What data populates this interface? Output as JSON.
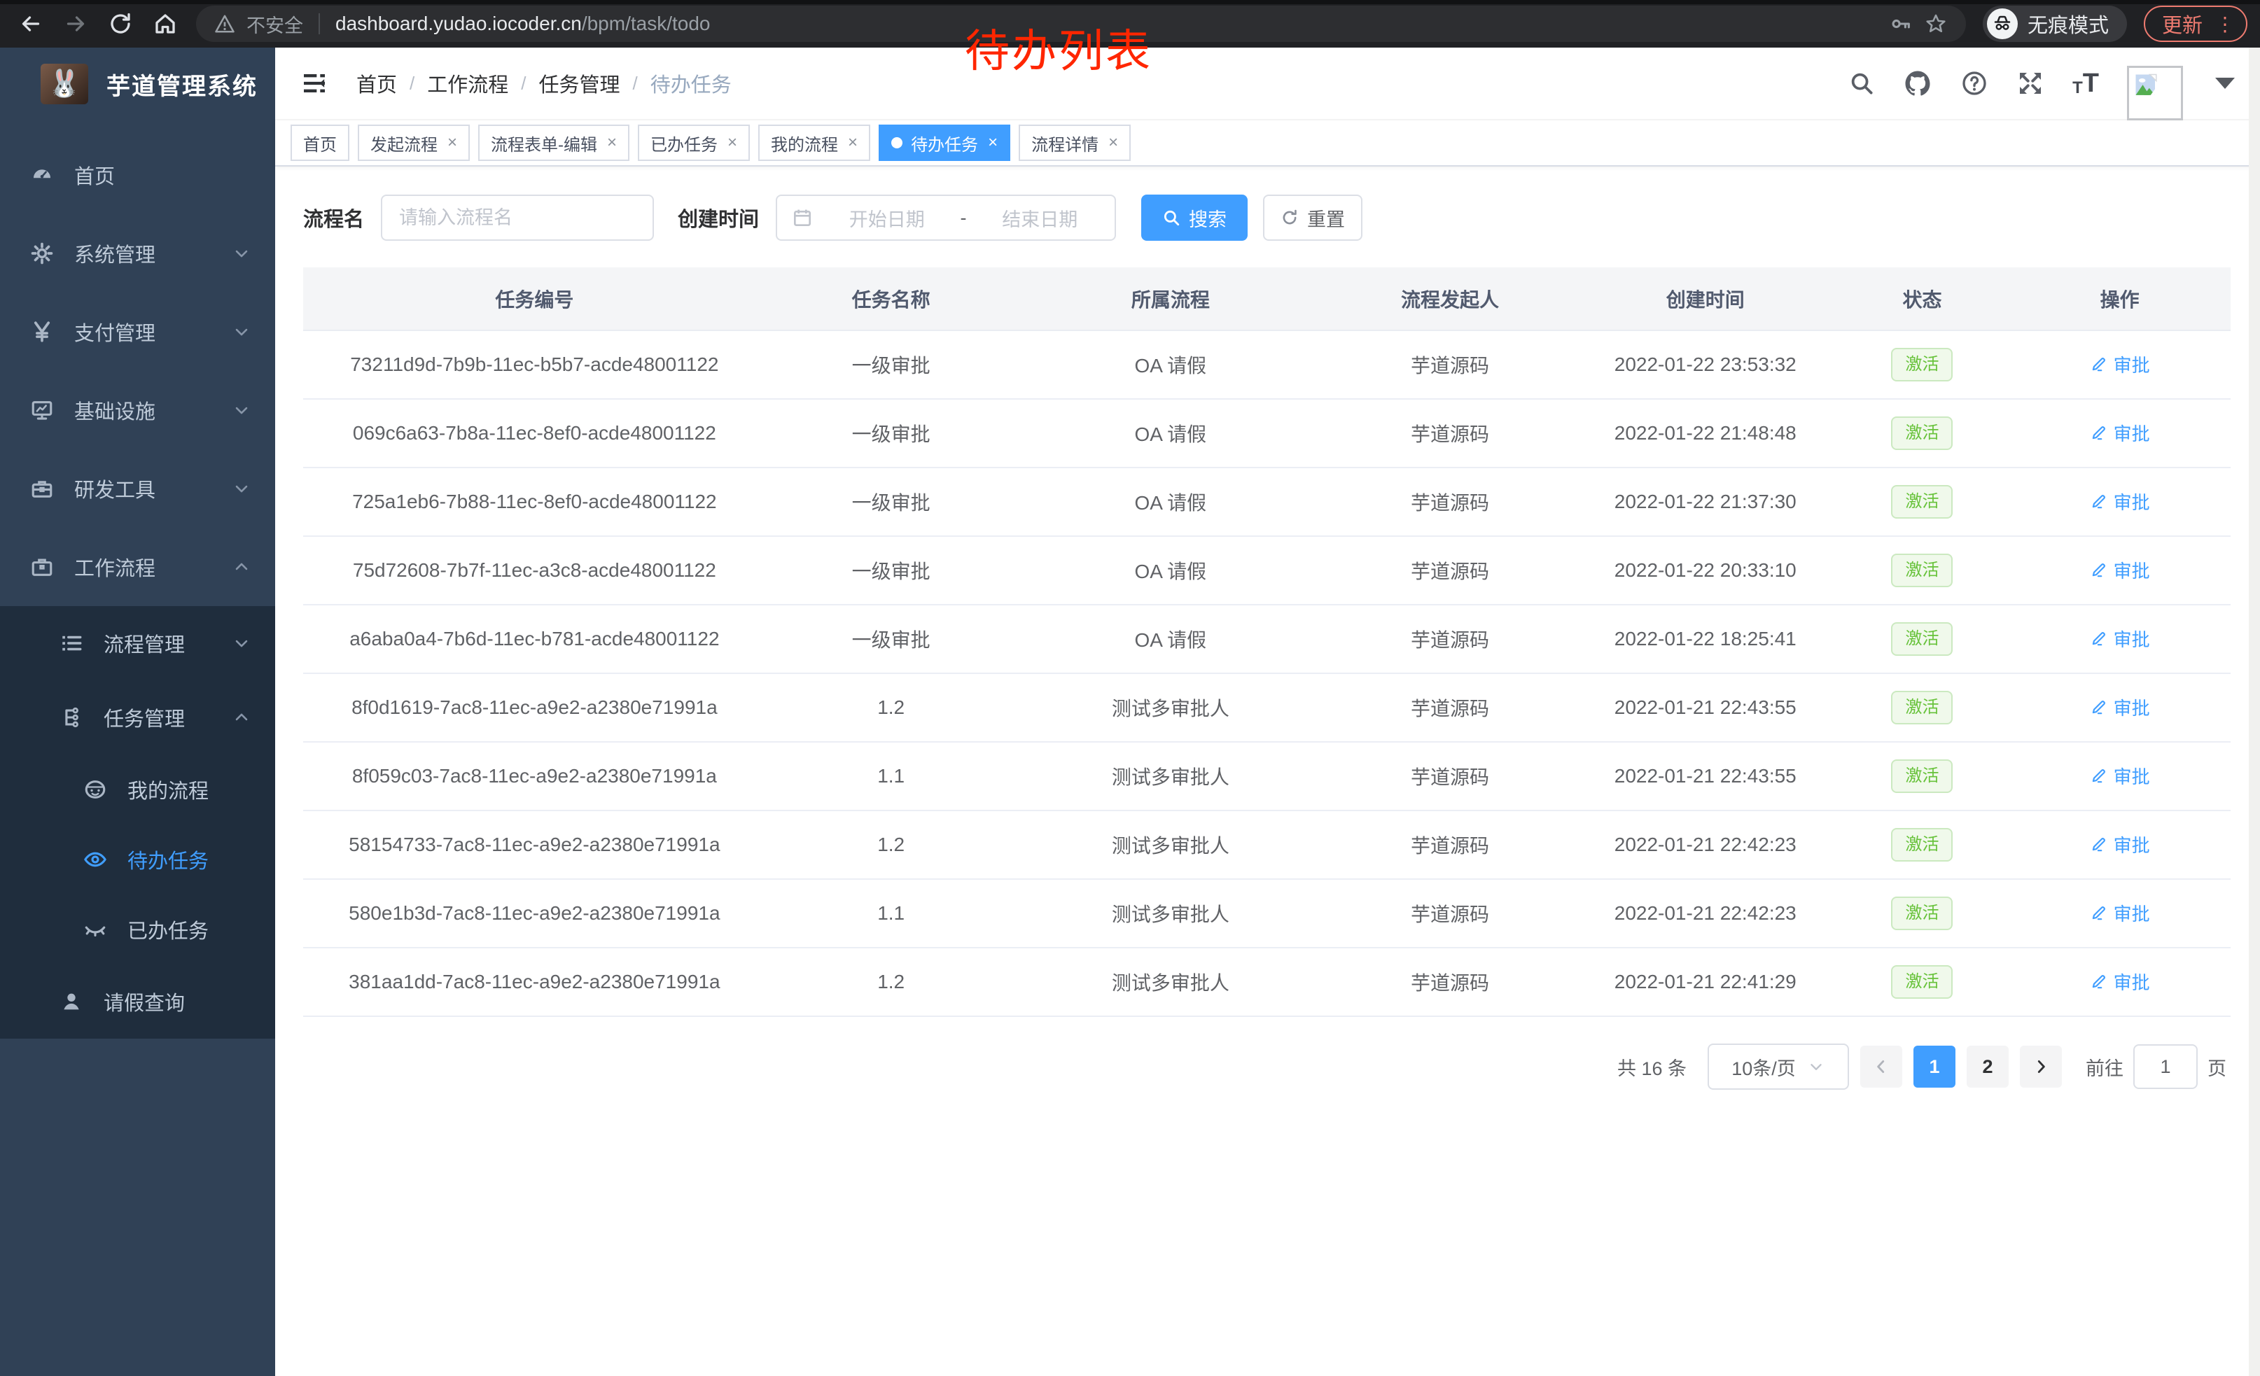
{
  "colors": {
    "accent": "#409eff",
    "success": "#67c23a",
    "annotation_red": "#ff2600",
    "sidebar_bg": "#304156",
    "submenu_bg": "#1f2d3d"
  },
  "annotation": {
    "text": "待办列表"
  },
  "chrome": {
    "security_label": "不安全",
    "url_host": "dashboard.yudao.iocoder.cn",
    "url_path": "/bpm/task/todo",
    "incognito_label": "无痕模式",
    "update_label": "更新",
    "menu_dots": "⋮"
  },
  "sidebar": {
    "logo_emoji": "🐰",
    "title": "芋道管理系统",
    "menu": [
      {
        "label": "首页",
        "icon": "dashboard-icon",
        "level": 1,
        "chevron": "",
        "submenu": false,
        "active": false
      },
      {
        "label": "系统管理",
        "icon": "gear-icon",
        "level": 1,
        "chevron": "down",
        "submenu": false,
        "active": false
      },
      {
        "label": "支付管理",
        "icon": "yen-icon",
        "level": 1,
        "chevron": "down",
        "submenu": false,
        "active": false
      },
      {
        "label": "基础设施",
        "icon": "monitor-icon",
        "level": 1,
        "chevron": "down",
        "submenu": false,
        "active": false
      },
      {
        "label": "研发工具",
        "icon": "toolbox-icon",
        "level": 1,
        "chevron": "down",
        "submenu": false,
        "active": false
      },
      {
        "label": "工作流程",
        "icon": "briefcase-icon",
        "level": 1,
        "chevron": "up",
        "submenu": false,
        "active": false
      },
      {
        "label": "流程管理",
        "icon": "list-tree-icon",
        "level": 2,
        "chevron": "down",
        "submenu": true,
        "active": false
      },
      {
        "label": "任务管理",
        "icon": "org-tree-icon",
        "level": 2,
        "chevron": "up",
        "submenu": true,
        "active": false
      },
      {
        "label": "我的流程",
        "icon": "face-icon",
        "level": 3,
        "chevron": "",
        "submenu": true,
        "active": false
      },
      {
        "label": "待办任务",
        "icon": "eye-icon",
        "level": 3,
        "chevron": "",
        "submenu": true,
        "active": true
      },
      {
        "label": "已办任务",
        "icon": "eye-closed-icon",
        "level": 3,
        "chevron": "",
        "submenu": true,
        "active": false
      },
      {
        "label": "请假查询",
        "icon": "user-icon",
        "level": 2,
        "chevron": "",
        "submenu": true,
        "active": false
      }
    ]
  },
  "navbar": {
    "breadcrumb": [
      "首页",
      "工作流程",
      "任务管理",
      "待办任务"
    ],
    "font_icon_small": "T",
    "font_icon_big": "T"
  },
  "tabs": [
    {
      "label": "首页",
      "closable": false,
      "active": false
    },
    {
      "label": "发起流程",
      "closable": true,
      "active": false
    },
    {
      "label": "流程表单-编辑",
      "closable": true,
      "active": false
    },
    {
      "label": "已办任务",
      "closable": true,
      "active": false
    },
    {
      "label": "我的流程",
      "closable": true,
      "active": false
    },
    {
      "label": "待办任务",
      "closable": true,
      "active": true
    },
    {
      "label": "流程详情",
      "closable": true,
      "active": false
    }
  ],
  "filters": {
    "name_label": "流程名",
    "name_placeholder": "请输入流程名",
    "time_label": "创建时间",
    "start_placeholder": "开始日期",
    "range_separator": "-",
    "end_placeholder": "结束日期",
    "search_label": "搜索",
    "reset_label": "重置"
  },
  "table": {
    "columns": [
      "任务编号",
      "任务名称",
      "所属流程",
      "流程发起人",
      "创建时间",
      "状态",
      "操作"
    ],
    "col_widths": [
      "24%",
      "13%",
      "16%",
      "13%",
      "13.5%",
      "9%",
      "11.5%"
    ],
    "status_label": "激活",
    "action_label": "审批",
    "rows": [
      {
        "id": "73211d9d-7b9b-11ec-b5b7-acde48001122",
        "name": "一级审批",
        "process": "OA 请假",
        "starter": "芋道源码",
        "time": "2022-01-22 23:53:32"
      },
      {
        "id": "069c6a63-7b8a-11ec-8ef0-acde48001122",
        "name": "一级审批",
        "process": "OA 请假",
        "starter": "芋道源码",
        "time": "2022-01-22 21:48:48"
      },
      {
        "id": "725a1eb6-7b88-11ec-8ef0-acde48001122",
        "name": "一级审批",
        "process": "OA 请假",
        "starter": "芋道源码",
        "time": "2022-01-22 21:37:30"
      },
      {
        "id": "75d72608-7b7f-11ec-a3c8-acde48001122",
        "name": "一级审批",
        "process": "OA 请假",
        "starter": "芋道源码",
        "time": "2022-01-22 20:33:10"
      },
      {
        "id": "a6aba0a4-7b6d-11ec-b781-acde48001122",
        "name": "一级审批",
        "process": "OA 请假",
        "starter": "芋道源码",
        "time": "2022-01-22 18:25:41"
      },
      {
        "id": "8f0d1619-7ac8-11ec-a9e2-a2380e71991a",
        "name": "1.2",
        "process": "测试多审批人",
        "starter": "芋道源码",
        "time": "2022-01-21 22:43:55"
      },
      {
        "id": "8f059c03-7ac8-11ec-a9e2-a2380e71991a",
        "name": "1.1",
        "process": "测试多审批人",
        "starter": "芋道源码",
        "time": "2022-01-21 22:43:55"
      },
      {
        "id": "58154733-7ac8-11ec-a9e2-a2380e71991a",
        "name": "1.2",
        "process": "测试多审批人",
        "starter": "芋道源码",
        "time": "2022-01-21 22:42:23"
      },
      {
        "id": "580e1b3d-7ac8-11ec-a9e2-a2380e71991a",
        "name": "1.1",
        "process": "测试多审批人",
        "starter": "芋道源码",
        "time": "2022-01-21 22:42:23"
      },
      {
        "id": "381aa1dd-7ac8-11ec-a9e2-a2380e71991a",
        "name": "1.2",
        "process": "测试多审批人",
        "starter": "芋道源码",
        "time": "2022-01-21 22:41:29"
      }
    ]
  },
  "pagination": {
    "total_label": "共 16 条",
    "page_size_label": "10条/页",
    "pages": [
      "1",
      "2"
    ],
    "current_page": "1",
    "goto_label": "前往",
    "goto_value": "1",
    "goto_suffix": "页"
  }
}
